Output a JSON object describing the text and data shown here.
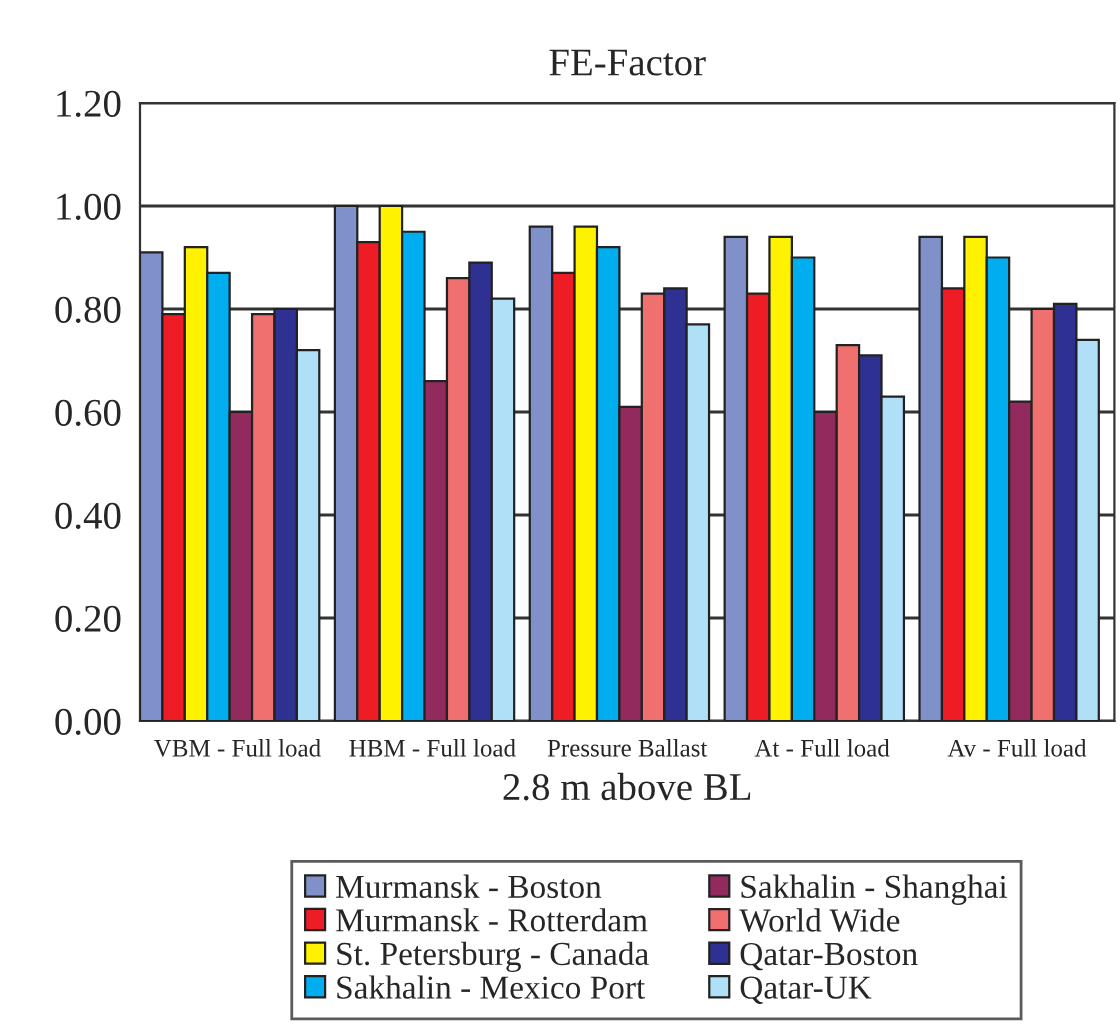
{
  "chart_data": {
    "type": "bar",
    "title": "FE-Factor",
    "xlabel": "2.8 m above BL",
    "categories": [
      "VBM - Full load",
      "HBM - Full load",
      "Pressure Ballast",
      "At - Full load",
      "Av - Full load"
    ],
    "series": [
      {
        "name": "Murmansk - Boston",
        "color": "#8090c8",
        "values": [
          0.91,
          1.0,
          0.96,
          0.94,
          0.94
        ]
      },
      {
        "name": "Murmansk - Rotterdam",
        "color": "#ee1c25",
        "values": [
          0.79,
          0.93,
          0.87,
          0.83,
          0.84
        ]
      },
      {
        "name": "St. Petersburg - Canada",
        "color": "#fff200",
        "values": [
          0.92,
          1.0,
          0.96,
          0.94,
          0.94
        ]
      },
      {
        "name": "Sakhalin - Mexico Port",
        "color": "#00aeef",
        "values": [
          0.87,
          0.95,
          0.92,
          0.9,
          0.9
        ]
      },
      {
        "name": "Sakhalin - Shanghai",
        "color": "#922a5e",
        "values": [
          0.6,
          0.66,
          0.61,
          0.6,
          0.62
        ]
      },
      {
        "name": "World Wide",
        "color": "#f07070",
        "values": [
          0.79,
          0.86,
          0.83,
          0.73,
          0.8
        ]
      },
      {
        "name": "Qatar-Boston",
        "color": "#2e3192",
        "values": [
          0.8,
          0.89,
          0.84,
          0.71,
          0.81
        ]
      },
      {
        "name": "Qatar-UK",
        "color": "#b0e0f8",
        "values": [
          0.72,
          0.82,
          0.77,
          0.63,
          0.74
        ]
      }
    ],
    "ylim": [
      0,
      1.2
    ],
    "yticks": [
      {
        "value": 0,
        "label": "0.00"
      },
      {
        "value": 0.2,
        "label": "0.20"
      },
      {
        "value": 0.4,
        "label": "0.40"
      },
      {
        "value": 0.6,
        "label": "0.60"
      },
      {
        "value": 0.8,
        "label": "0.80"
      },
      {
        "value": 1.0,
        "label": "1.00"
      },
      {
        "value": 1.2,
        "label": "1.20"
      }
    ],
    "grid": "y",
    "legend": "bottom"
  }
}
